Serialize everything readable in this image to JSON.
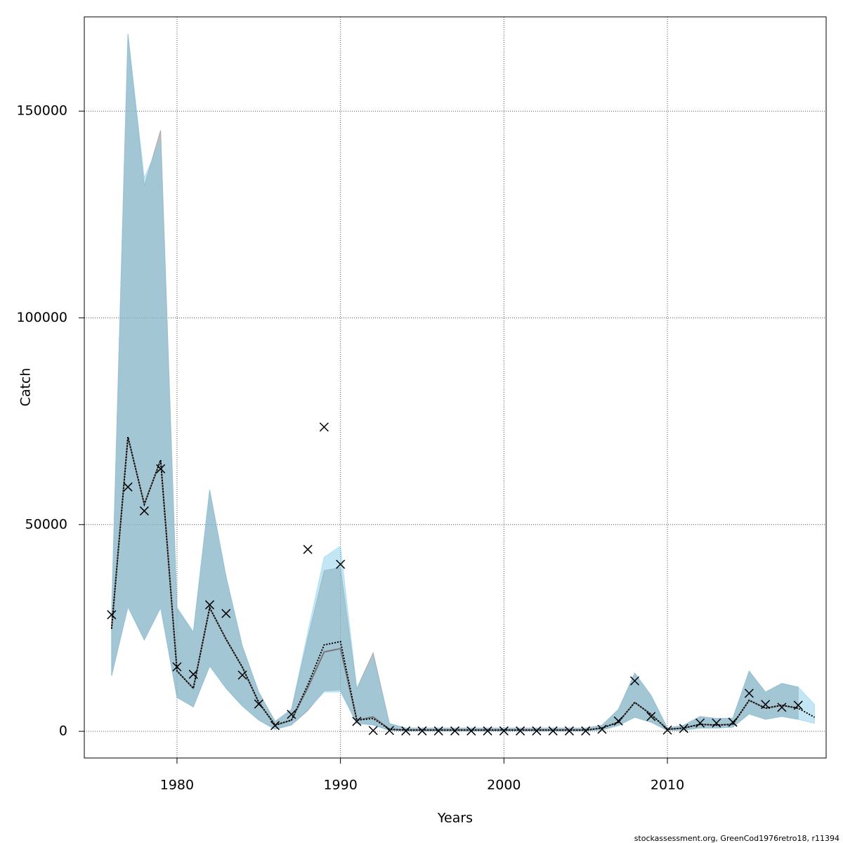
{
  "chart_data": {
    "type": "line",
    "x_label": "Years",
    "y_label": "Catch",
    "footer": "stockassessment.org, GreenCod1976retro18, r11394",
    "x": [
      1976,
      1977,
      1978,
      1979,
      1980,
      1981,
      1982,
      1983,
      1984,
      1985,
      1986,
      1987,
      1988,
      1989,
      1990,
      1991,
      1992,
      1993,
      1994,
      1995,
      1996,
      1997,
      1998,
      1999,
      2000,
      2001,
      2002,
      2003,
      2004,
      2005,
      2006,
      2007,
      2008,
      2009,
      2010,
      2011,
      2012,
      2013,
      2014,
      2015,
      2016,
      2017,
      2018,
      2019
    ],
    "series": [
      {
        "color": "#777777",
        "band_color": "#808080",
        "opacity": 0.5,
        "line_style": "solid",
        "values": [
          24800,
          71200,
          54900,
          65600,
          14600,
          10400,
          29900,
          22300,
          15500,
          7000,
          1500,
          2700,
          10500,
          19200,
          20000,
          2700,
          3500,
          500,
          300,
          300,
          300,
          300,
          300,
          300,
          300,
          300,
          300,
          300,
          300,
          300,
          800,
          2200,
          7000,
          4100,
          500,
          800,
          1700,
          1500,
          1700,
          7500,
          5600,
          6300,
          5600,
          null
        ],
        "lower": [
          13400,
          30100,
          22100,
          29900,
          8200,
          5900,
          15800,
          10400,
          6100,
          2700,
          500,
          1500,
          5000,
          9800,
          10000,
          1900,
          1600,
          200,
          100,
          100,
          100,
          100,
          100,
          100,
          100,
          100,
          100,
          100,
          100,
          100,
          300,
          1400,
          3400,
          2200,
          200,
          300,
          800,
          800,
          1000,
          4200,
          2900,
          3600,
          2900,
          null
        ],
        "upper": [
          29000,
          168700,
          132000,
          145400,
          29900,
          24000,
          58400,
          37500,
          20600,
          9500,
          2400,
          5300,
          22500,
          38900,
          39600,
          10400,
          19000,
          1900,
          800,
          800,
          800,
          800,
          800,
          800,
          800,
          800,
          800,
          800,
          800,
          800,
          1500,
          5300,
          14100,
          8700,
          800,
          1500,
          3600,
          3100,
          3200,
          14600,
          9500,
          11600,
          10700,
          null
        ]
      },
      {
        "color": "#000000",
        "band_color": "#87ceeb",
        "opacity": 0.5,
        "line_style": "dotted",
        "values": [
          24800,
          71200,
          54900,
          65600,
          14600,
          10400,
          29900,
          22300,
          15500,
          7000,
          1500,
          2700,
          11200,
          20900,
          21700,
          2700,
          3100,
          500,
          300,
          300,
          300,
          300,
          300,
          300,
          300,
          300,
          300,
          300,
          300,
          300,
          800,
          2200,
          7000,
          4100,
          500,
          800,
          1700,
          1500,
          1700,
          7500,
          5600,
          6300,
          5600,
          3400
        ],
        "lower": [
          13400,
          30100,
          22100,
          29900,
          8200,
          5900,
          15800,
          10400,
          6100,
          2700,
          500,
          1500,
          5300,
          9500,
          9500,
          1900,
          1500,
          200,
          100,
          100,
          100,
          100,
          100,
          100,
          100,
          100,
          100,
          100,
          100,
          100,
          300,
          1400,
          3400,
          2200,
          200,
          300,
          800,
          800,
          1000,
          4200,
          2900,
          3600,
          2900,
          1900
        ],
        "upper": [
          29000,
          168700,
          133900,
          142900,
          29900,
          24000,
          58400,
          37500,
          20600,
          9500,
          2400,
          5300,
          24000,
          42100,
          44800,
          10400,
          18000,
          1900,
          800,
          800,
          800,
          800,
          800,
          800,
          800,
          800,
          800,
          800,
          800,
          800,
          1500,
          5300,
          14100,
          8700,
          800,
          1500,
          3600,
          3100,
          3200,
          14600,
          9500,
          11600,
          10700,
          6500
        ]
      }
    ],
    "observed": {
      "marker": "x",
      "color": "#000000",
      "values": [
        28200,
        59100,
        53300,
        63500,
        15600,
        13800,
        30600,
        28500,
        13600,
        6600,
        1400,
        4100,
        44000,
        73600,
        40400,
        2400,
        200,
        200,
        100,
        100,
        100,
        100,
        100,
        100,
        100,
        100,
        100,
        100,
        100,
        100,
        500,
        2500,
        12200,
        3600,
        300,
        700,
        2000,
        2000,
        2200,
        9200,
        6500,
        5800,
        6300,
        null
      ]
    },
    "xlim": [
      1974.33,
      2019.71
    ],
    "xticks": [
      1980,
      1990,
      2000,
      2010
    ],
    "ylim": [
      -6450,
      172800
    ],
    "yticks": [
      0,
      50000,
      100000,
      150000
    ],
    "grid": true
  }
}
